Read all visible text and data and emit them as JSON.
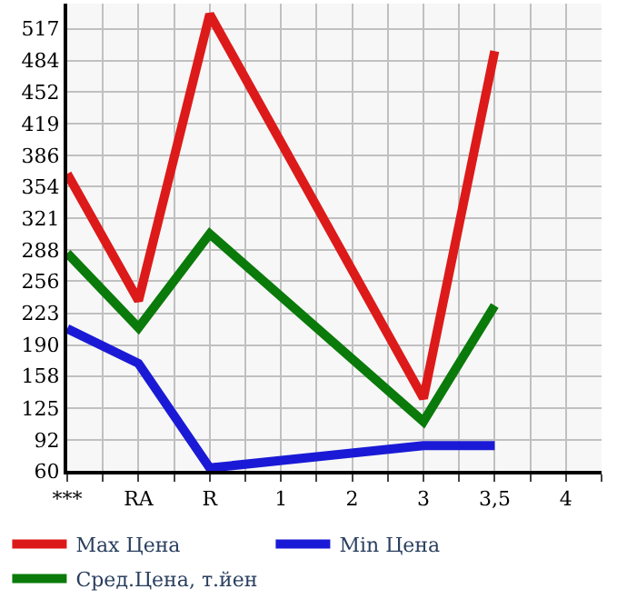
{
  "chart_data": {
    "type": "line",
    "categories": [
      "***",
      "RA",
      "R",
      "1",
      "2",
      "3",
      "3,5",
      "4"
    ],
    "series": [
      {
        "name": "Max Цена",
        "color": "#dd1a1a",
        "values": [
          367,
          236,
          532,
          null,
          null,
          135,
          494,
          null
        ]
      },
      {
        "name": "Min Цена",
        "color": "#1a1ad6",
        "values": [
          207,
          171,
          63,
          null,
          null,
          86,
          86,
          null
        ]
      },
      {
        "name": "Сред.Цена, т.йен",
        "color": "#0a7a0a",
        "values": [
          285,
          208,
          305,
          null,
          null,
          111,
          231,
          null
        ]
      }
    ],
    "ylim": [
      60,
      543
    ],
    "yticks": [
      60,
      92,
      125,
      158,
      190,
      223,
      256,
      288,
      321,
      354,
      386,
      419,
      452,
      484,
      517
    ],
    "grid": true,
    "legend": "bottom",
    "marker": "none",
    "line_style": "solid"
  }
}
